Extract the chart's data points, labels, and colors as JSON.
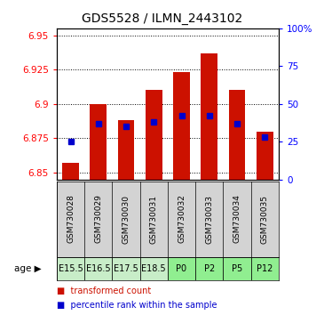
{
  "title": "GDS5528 / ILMN_2443102",
  "samples": [
    "GSM730028",
    "GSM730029",
    "GSM730030",
    "GSM730031",
    "GSM730032",
    "GSM730033",
    "GSM730034",
    "GSM730035"
  ],
  "age_labels": [
    "E15.5",
    "E16.5",
    "E17.5",
    "E18.5",
    "P0",
    "P2",
    "P5",
    "P12"
  ],
  "age_bg_colors_sample": [
    "#d3d3d3",
    "#d3d3d3",
    "#d3d3d3",
    "#d3d3d3",
    "#d3d3d3",
    "#d3d3d3",
    "#d3d3d3",
    "#d3d3d3"
  ],
  "age_bg_colors": [
    "#c8edc8",
    "#c8edc8",
    "#c8edc8",
    "#c8edc8",
    "#90ee90",
    "#90ee90",
    "#90ee90",
    "#90ee90"
  ],
  "transformed_counts": [
    6.857,
    6.9,
    6.888,
    6.91,
    6.923,
    6.937,
    6.91,
    6.88
  ],
  "percentile_ranks": [
    25,
    37,
    35,
    38,
    42,
    42,
    37,
    28
  ],
  "ylim_left": [
    6.845,
    6.955
  ],
  "ylim_right": [
    0,
    100
  ],
  "yticks_left": [
    6.85,
    6.875,
    6.9,
    6.925,
    6.95
  ],
  "yticks_right": [
    0,
    25,
    50,
    75,
    100
  ],
  "ytick_labels_right": [
    "0",
    "25",
    "50",
    "75",
    "100%"
  ],
  "bar_color": "#cc1100",
  "dot_color": "#0000cc",
  "base_value": 6.845,
  "bar_width": 0.6,
  "legend_red": "transformed count",
  "legend_blue": "percentile rank within the sample",
  "title_fontsize": 10,
  "tick_fontsize": 7.5,
  "sample_label_fontsize": 6.5,
  "age_label_fontsize": 8
}
